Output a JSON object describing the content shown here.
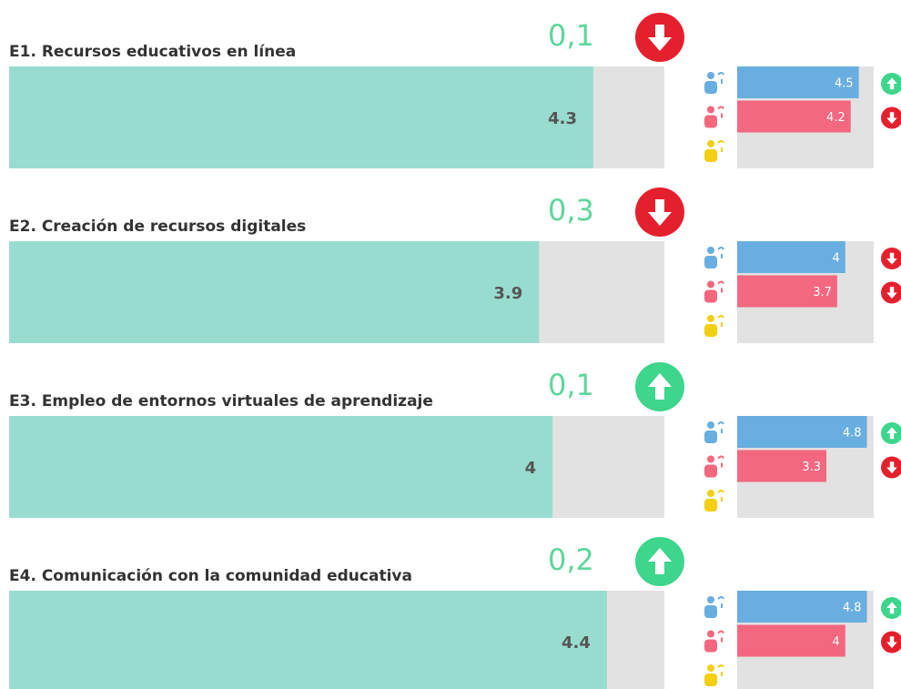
{
  "colors": {
    "main": "#98dccf",
    "track": "#e2e2e2",
    "change": "#5fd69b",
    "up": "#3ed58c",
    "down": "#e5202e",
    "groups": [
      "#68aee0",
      "#f3677f",
      "#f3cf10"
    ]
  },
  "items": [
    {
      "title": "E1. Recursos educativos en línea",
      "value": 4.3,
      "change": "0,1",
      "trend": "down",
      "groups": [
        {
          "value": 4.5,
          "trend": "up"
        },
        {
          "value": 4.2,
          "trend": "down"
        },
        {
          "value": null,
          "trend": null
        }
      ]
    },
    {
      "title": "E2. Creación de recursos digitales",
      "value": 3.9,
      "change": "0,3",
      "trend": "down",
      "groups": [
        {
          "value": 4,
          "trend": "down"
        },
        {
          "value": 3.7,
          "trend": "down"
        },
        {
          "value": null,
          "trend": null
        }
      ]
    },
    {
      "title": "E3. Empleo de entornos virtuales de aprendizaje",
      "value": 4,
      "change": "0,1",
      "trend": "up",
      "groups": [
        {
          "value": 4.8,
          "trend": "up"
        },
        {
          "value": 3.3,
          "trend": "down"
        },
        {
          "value": null,
          "trend": null
        }
      ]
    },
    {
      "title": "E4. Comunicación con la comunidad educativa",
      "value": 4.4,
      "change": "0,2",
      "trend": "up",
      "groups": [
        {
          "value": 4.8,
          "trend": "up"
        },
        {
          "value": 4,
          "trend": "down"
        },
        {
          "value": null,
          "trend": null
        }
      ]
    }
  ]
}
